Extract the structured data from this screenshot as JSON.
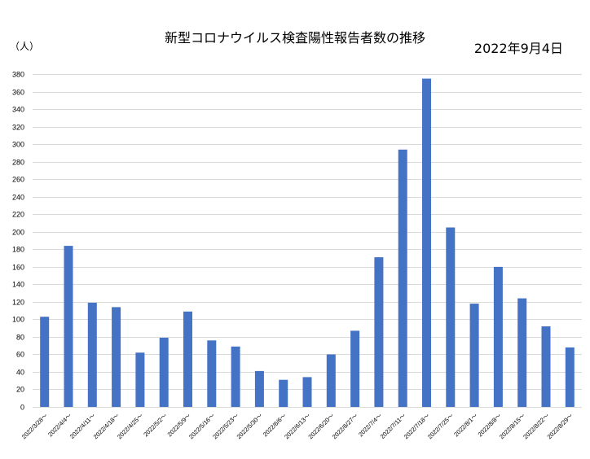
{
  "chart_data": {
    "type": "bar",
    "title": "新型コロナウイルス検査陽性報告者数の推移",
    "date_label": "2022年9月4日",
    "ylabel": "（人）",
    "xlabel": "",
    "ylim": [
      0,
      390
    ],
    "yticks": [
      0,
      20,
      40,
      60,
      80,
      100,
      120,
      140,
      160,
      180,
      200,
      220,
      240,
      260,
      280,
      300,
      320,
      340,
      360,
      380
    ],
    "grid": true,
    "legend": "none",
    "bar_color": "#4472c4",
    "categories": [
      "2022/3/28～",
      "2022/4/4～",
      "2022/4/11～",
      "2022/4/18～",
      "2022/4/25～",
      "2022/5/2～",
      "2022/5/9～",
      "2022/5/16～",
      "2022/5/23～",
      "2022/5/30～",
      "2022/6/6～",
      "2022/6/13～",
      "2022/6/20～",
      "2022/6/27～",
      "2022/7/4～",
      "2022/7/11～",
      "2022/7/18～",
      "2022/7/25～",
      "2022/8/1～",
      "2022/8/8～",
      "2022/8/15～",
      "2022/8/22～",
      "2022/8/29～"
    ],
    "values": [
      103,
      184,
      119,
      114,
      62,
      79,
      109,
      76,
      69,
      41,
      31,
      34,
      60,
      87,
      171,
      294,
      375,
      205,
      118,
      160,
      124,
      92,
      68
    ]
  }
}
